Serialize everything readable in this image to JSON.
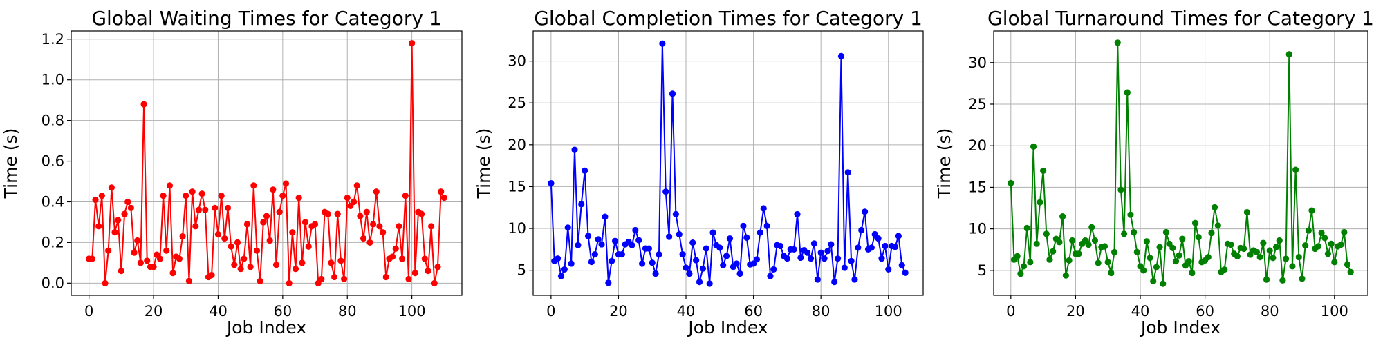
{
  "chart_data": [
    {
      "type": "line",
      "title": "Global Waiting Times for Category 1",
      "xlabel": "Job Index",
      "ylabel": "Time (s)",
      "color": "#ff0000",
      "xlim": [
        -5.5,
        115.5
      ],
      "ylim": [
        -0.06,
        1.24
      ],
      "xticks": [
        0,
        20,
        40,
        60,
        80,
        100
      ],
      "xtick_labels": [
        "0",
        "20",
        "40",
        "60",
        "80",
        "100"
      ],
      "yticks": [
        0.0,
        0.2,
        0.4,
        0.6,
        0.8,
        1.0,
        1.2
      ],
      "ytick_labels": [
        "0.0",
        "0.2",
        "0.4",
        "0.6",
        "0.8",
        "1.0",
        "1.2"
      ],
      "grid": true,
      "series": [
        {
          "name": "",
          "y": [
            0.12,
            0.12,
            0.41,
            0.28,
            0.43,
            0.0,
            0.16,
            0.47,
            0.25,
            0.31,
            0.06,
            0.34,
            0.4,
            0.37,
            0.15,
            0.21,
            0.1,
            0.88,
            0.11,
            0.08,
            0.08,
            0.14,
            0.12,
            0.43,
            0.16,
            0.48,
            0.05,
            0.13,
            0.12,
            0.23,
            0.43,
            0.01,
            0.45,
            0.28,
            0.36,
            0.44,
            0.36,
            0.03,
            0.04,
            0.37,
            0.24,
            0.43,
            0.22,
            0.37,
            0.18,
            0.09,
            0.2,
            0.07,
            0.12,
            0.29,
            0.08,
            0.48,
            0.16,
            0.01,
            0.3,
            0.33,
            0.21,
            0.46,
            0.09,
            0.35,
            0.43,
            0.49,
            0.0,
            0.25,
            0.07,
            0.42,
            0.1,
            0.3,
            0.18,
            0.28,
            0.29,
            0.0,
            0.02,
            0.35,
            0.34,
            0.1,
            0.03,
            0.34,
            0.11,
            0.02,
            0.42,
            0.38,
            0.4,
            0.48,
            0.33,
            0.22,
            0.35,
            0.2,
            0.29,
            0.45,
            0.28,
            0.25,
            0.03,
            0.12,
            0.13,
            0.17,
            0.28,
            0.12,
            0.43,
            0.02,
            1.18,
            0.05,
            0.35,
            0.34,
            0.12,
            0.06,
            0.28,
            0.0,
            0.08,
            0.45,
            0.42
          ]
        }
      ]
    },
    {
      "type": "line",
      "title": "Global Completion Times for Category 1",
      "xlabel": "Job Index",
      "ylabel": "Time (s)",
      "color": "#0000ff",
      "xlim": [
        -5.3,
        110.3
      ],
      "ylim": [
        2.0,
        33.6
      ],
      "xticks": [
        0,
        20,
        40,
        60,
        80,
        100
      ],
      "xtick_labels": [
        "0",
        "20",
        "40",
        "60",
        "80",
        "100"
      ],
      "yticks": [
        5,
        10,
        15,
        20,
        25,
        30
      ],
      "ytick_labels": [
        "5",
        "10",
        "15",
        "20",
        "25",
        "30"
      ],
      "grid": true,
      "series": [
        {
          "name": "",
          "y": [
            15.4,
            6.1,
            6.4,
            4.3,
            5.1,
            10.1,
            5.8,
            19.4,
            8.0,
            12.9,
            16.9,
            9.1,
            6.0,
            6.9,
            8.7,
            8.1,
            11.4,
            3.5,
            6.1,
            8.5,
            6.9,
            6.9,
            8.1,
            8.4,
            8.0,
            9.8,
            8.6,
            5.8,
            7.6,
            7.6,
            5.9,
            4.6,
            6.9,
            32.1,
            14.4,
            9.0,
            26.1,
            11.7,
            9.3,
            6.9,
            5.3,
            4.6,
            8.3,
            6.2,
            3.6,
            5.2,
            7.6,
            3.4,
            9.5,
            8.0,
            7.7,
            5.6,
            6.7,
            8.8,
            5.4,
            5.8,
            4.6,
            10.3,
            8.9,
            5.7,
            5.8,
            6.3,
            9.5,
            12.4,
            10.3,
            4.3,
            5.1,
            8.0,
            7.9,
            6.7,
            6.4,
            7.5,
            7.5,
            11.7,
            6.5,
            7.4,
            7.1,
            6.4,
            8.2,
            3.9,
            7.1,
            6.4,
            7.3,
            8.1,
            3.6,
            6.4,
            30.6,
            5.3,
            16.7,
            6.1,
            3.9,
            7.7,
            9.8,
            12.0,
            7.5,
            7.7,
            9.3,
            8.8,
            6.4,
            7.9,
            5.1,
            7.9,
            7.8,
            9.1,
            5.6,
            4.7
          ]
        }
      ]
    },
    {
      "type": "line",
      "title": "Global Turnaround Times for Category 1",
      "xlabel": "Job Index",
      "ylabel": "Time (s)",
      "color": "#008000",
      "xlim": [
        -5.3,
        110.3
      ],
      "ylim": [
        2.0,
        33.8
      ],
      "xticks": [
        0,
        20,
        40,
        60,
        80,
        100
      ],
      "xtick_labels": [
        "0",
        "20",
        "40",
        "60",
        "80",
        "100"
      ],
      "yticks": [
        5,
        10,
        15,
        20,
        25,
        30
      ],
      "ytick_labels": [
        "5",
        "10",
        "15",
        "20",
        "25",
        "30"
      ],
      "grid": true,
      "series": [
        {
          "name": "",
          "y": [
            15.5,
            6.3,
            6.7,
            4.6,
            5.5,
            10.1,
            6.0,
            19.9,
            8.2,
            13.2,
            17.0,
            9.4,
            6.3,
            7.3,
            8.8,
            8.4,
            11.5,
            4.4,
            6.2,
            8.6,
            7.0,
            7.0,
            8.2,
            8.6,
            8.1,
            10.2,
            8.6,
            5.9,
            7.8,
            7.9,
            6.0,
            4.7,
            7.2,
            32.4,
            14.7,
            9.4,
            26.4,
            11.7,
            9.6,
            7.2,
            5.5,
            5.0,
            8.5,
            6.5,
            3.7,
            5.4,
            7.8,
            3.4,
            9.6,
            8.2,
            7.7,
            6.1,
            6.8,
            8.8,
            5.6,
            6.1,
            4.7,
            10.7,
            9.0,
            6.0,
            6.2,
            6.6,
            9.5,
            12.6,
            10.4,
            4.8,
            5.1,
            8.2,
            8.1,
            7.0,
            6.7,
            7.7,
            7.6,
            12.0,
            6.9,
            7.4,
            7.2,
            6.6,
            8.3,
            3.9,
            7.4,
            6.5,
            7.8,
            8.6,
            3.8,
            6.4,
            31.0,
            5.5,
            17.1,
            6.6,
            4.0,
            8.0,
            9.8,
            12.2,
            7.6,
            7.9,
            9.5,
            8.9,
            7.0,
            8.2,
            6.0,
            7.9,
            8.1,
            9.6,
            5.7,
            4.8
          ]
        }
      ]
    }
  ]
}
